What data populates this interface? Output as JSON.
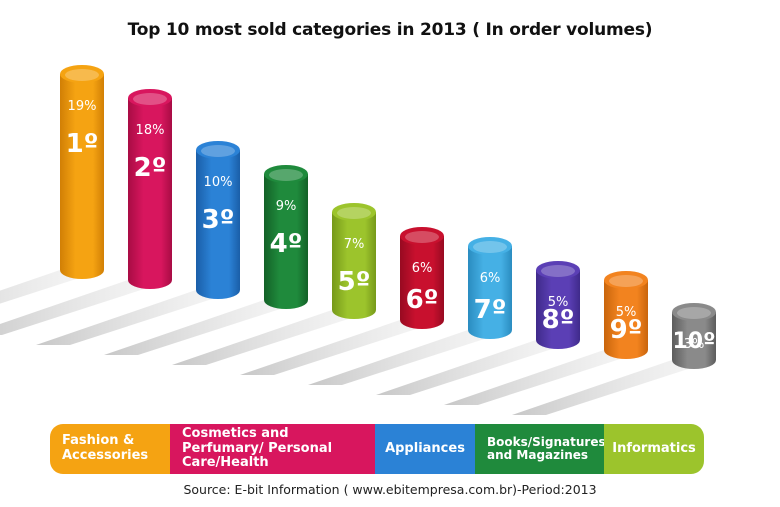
{
  "title": "Top 10 most sold categories in 2013 ( In order volumes)",
  "source": "Source: E-bit Information ( www.ebitempresa.com.br)-Period:2013",
  "chart_data": {
    "type": "bar",
    "title": "Top 10 most sold categories in 2013 ( In order volumes)",
    "unit": "%",
    "bars": [
      {
        "rank": "1º",
        "percent_label": "19%",
        "value": 19,
        "color": "#f5a312",
        "dark": "#d17f05"
      },
      {
        "rank": "2º",
        "percent_label": "18%",
        "value": 18,
        "color": "#d8165e",
        "dark": "#a80c44"
      },
      {
        "rank": "3º",
        "percent_label": "10%",
        "value": 10,
        "color": "#2b82d6",
        "dark": "#1a5ea8"
      },
      {
        "rank": "4º",
        "percent_label": "9%",
        "value": 9,
        "color": "#1f8a3c",
        "dark": "#136127"
      },
      {
        "rank": "5º",
        "percent_label": "7%",
        "value": 7,
        "color": "#9cc42c",
        "dark": "#76991a"
      },
      {
        "rank": "6º",
        "percent_label": "6%",
        "value": 6,
        "color": "#c8102e",
        "dark": "#970a21"
      },
      {
        "rank": "7º",
        "percent_label": "6%",
        "value": 6,
        "color": "#45b0e5",
        "dark": "#2a8cc0"
      },
      {
        "rank": "8º",
        "percent_label": "5%",
        "value": 5,
        "color": "#5b3fb5",
        "dark": "#3f2a8a"
      },
      {
        "rank": "9º",
        "percent_label": "5%",
        "value": 5,
        "color": "#f2831f",
        "dark": "#c9650c"
      },
      {
        "rank": "10º",
        "percent_label": "3%",
        "value": 3,
        "color": "#8a8a8a",
        "dark": "#5c5c5c"
      }
    ],
    "legend": [
      {
        "label": "Fashion & Accessories",
        "color": "#f5a312"
      },
      {
        "label": "Cosmetics and Perfumary/ Personal Care/Health",
        "color": "#d8165e"
      },
      {
        "label": "Appliances",
        "color": "#2b82d6"
      },
      {
        "label": "Books/Signatures and Magazines",
        "color": "#1f8a3c"
      },
      {
        "label": "Informatics",
        "color": "#9cc42c"
      }
    ]
  }
}
